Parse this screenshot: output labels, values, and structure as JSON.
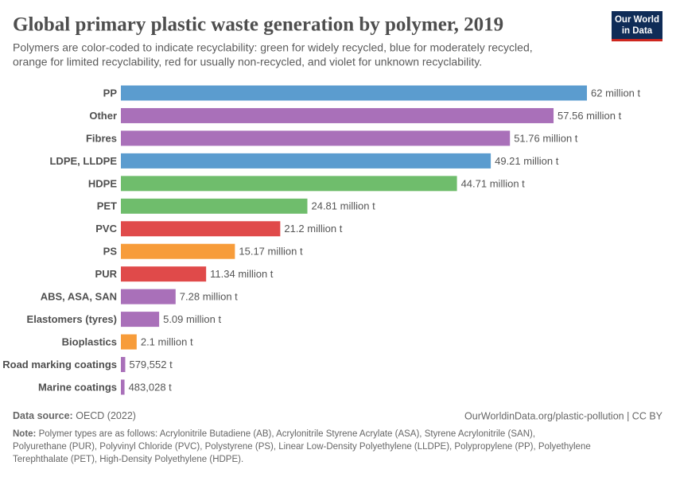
{
  "chart_data": {
    "type": "bar",
    "orientation": "horizontal",
    "title": "Global primary plastic waste generation by polymer, 2019",
    "subtitle": [
      "Polymers are color-coded to indicate recyclability: green for widely recycled, blue for moderately recycled,",
      "orange for limited recyclability, red for usually non-recycled, and violet for unknown recyclability."
    ],
    "categories": [
      "PP",
      "Other",
      "Fibres",
      "LDPE, LLDPE",
      "HDPE",
      "PET",
      "PVC",
      "PS",
      "PUR",
      "ABS, ASA, SAN",
      "Elastomers (tyres)",
      "Bioplastics",
      "Road marking coatings",
      "Marine coatings"
    ],
    "values": [
      62000000,
      57560000,
      51760000,
      49210000,
      44710000,
      24810000,
      21200000,
      15170000,
      11340000,
      7280000,
      5090000,
      2100000,
      579552,
      483028
    ],
    "value_labels": [
      "62 million t",
      "57.56 million t",
      "51.76 million t",
      "49.21 million t",
      "44.71 million t",
      "24.81 million t",
      "21.2 million t",
      "15.17 million t",
      "11.34 million t",
      "7.28 million t",
      "5.09 million t",
      "2.1 million t",
      "579,552 t",
      "483,028 t"
    ],
    "colors": [
      "#5b9ccf",
      "#a970b9",
      "#a970b9",
      "#5b9ccf",
      "#6fbd6c",
      "#6fbd6c",
      "#e04a4a",
      "#f79c3a",
      "#e04a4a",
      "#a970b9",
      "#a970b9",
      "#f79c3a",
      "#a970b9",
      "#a970b9"
    ]
  },
  "logo": [
    "Our World",
    "in Data"
  ],
  "source": {
    "label": "Data source:",
    "text": "OECD (2022)"
  },
  "url": "OurWorldinData.org/plastic-pollution | CC BY",
  "note": {
    "label": "Note:",
    "lines": [
      "Polymer types are as follows: Acrylonitrile Butadiene (AB), Acrylonitrile Styrene Acrylate (ASA), Styrene Acrylonitrile (SAN),",
      "Polyurethane (PUR), Polyvinyl Chloride (PVC), Polystyrene (PS), Linear Low-Density Polyethylene (LLDPE), Polypropylene (PP), Polyethylene",
      "Terephthalate (PET), High-Density Polyethylene (HDPE)."
    ]
  }
}
